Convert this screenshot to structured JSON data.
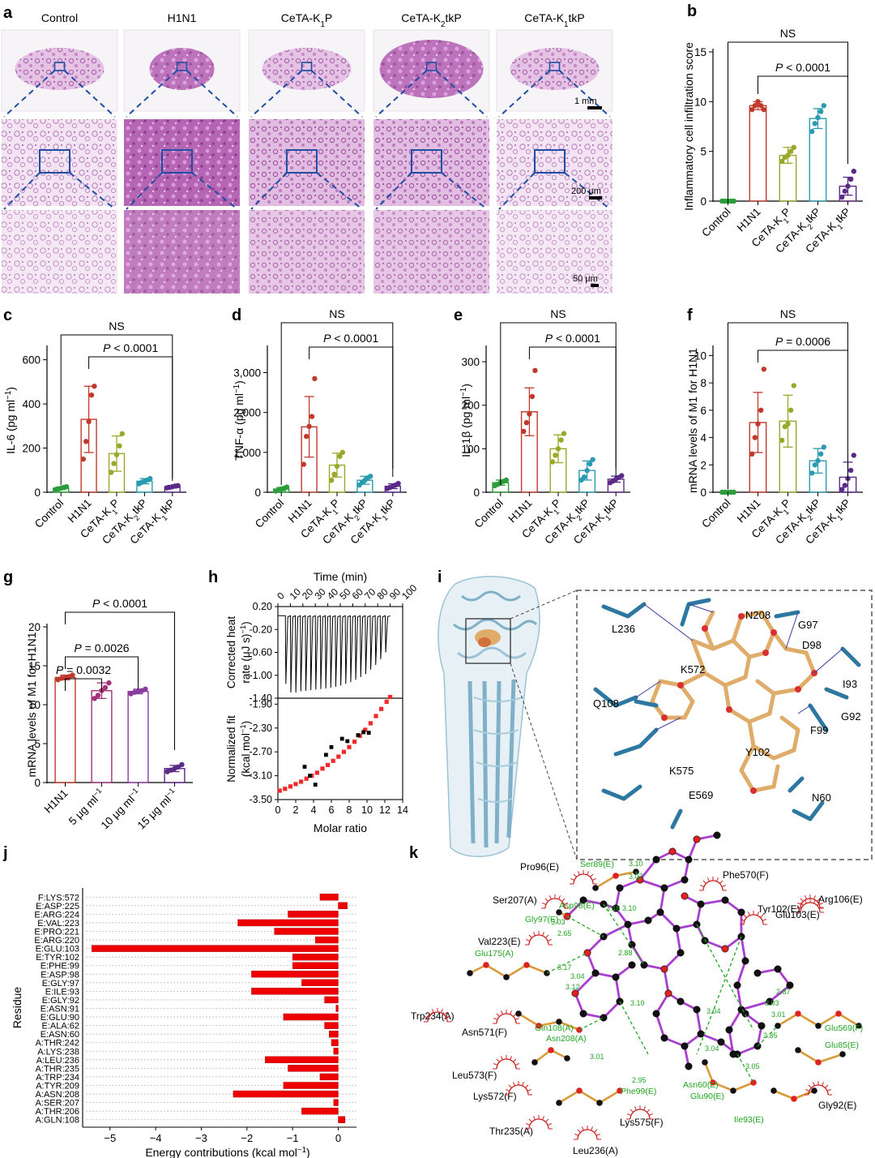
{
  "colors": {
    "control": "#2a9d3a",
    "h1n1": "#c0392b",
    "k1p": "#9aa82a",
    "k2tkp": "#2a9bb0",
    "k1tkp": "#5b2a86",
    "tissue_dark": "#a44ea8",
    "tissue_light": "#dbb7e0",
    "box_blue": "#1f4ea3",
    "energy_red": "#ee0000",
    "itc_red": "#ee2a2a",
    "protein_blue": "#9cc3d5",
    "ligand_tan": "#e0ac6a",
    "sidechain_blue": "#2d78a0",
    "lig_purple": "#a83fcf",
    "hbond_green": "#22a422"
  },
  "panel_a": {
    "label": "a",
    "columns": [
      "Control",
      "H1N1",
      "CeTA-K1P",
      "CeTA-K2tkP",
      "CeTA-K1tkP"
    ],
    "scalebars": [
      "1 mm",
      "200 μm",
      "50 μm"
    ],
    "row_density": [
      0.25,
      0.85,
      0.4,
      0.6,
      0.3
    ]
  },
  "chart_data": [
    {
      "panel": "b",
      "type": "bar",
      "categories": [
        "Control",
        "H1N1",
        "CeTA-K1P",
        "CeTA-K2tkP",
        "CeTA-K1tkP"
      ],
      "values": [
        0,
        9.6,
        4.6,
        8.3,
        1.5
      ],
      "errors": [
        0,
        0.4,
        0.8,
        1.0,
        0.9
      ],
      "points": [
        [
          0,
          0,
          0,
          0,
          0
        ],
        [
          9.2,
          9.6,
          10,
          9.6,
          9.2
        ],
        [
          4,
          4.4,
          4.6,
          5,
          5.4
        ],
        [
          7,
          7.8,
          8.4,
          9,
          9.6
        ],
        [
          0.4,
          1,
          1.5,
          2.2,
          3
        ]
      ],
      "ylabel": "Inflammatory cell infiltration score",
      "ylim": [
        0,
        15
      ],
      "yticks": [
        0,
        5,
        10,
        15
      ],
      "annotations": [
        "NS",
        "P < 0.0001"
      ]
    },
    {
      "panel": "c",
      "type": "bar",
      "categories": [
        "Control",
        "H1N1",
        "CeTA-K1P",
        "CeTA-K2tkP",
        "CeTA-K1tkP"
      ],
      "values": [
        18,
        330,
        175,
        50,
        25
      ],
      "errors": [
        6,
        150,
        80,
        12,
        6
      ],
      "points": [
        [
          12,
          15,
          18,
          22,
          25
        ],
        [
          150,
          230,
          320,
          440,
          480
        ],
        [
          90,
          130,
          170,
          210,
          265
        ],
        [
          38,
          45,
          50,
          55,
          62
        ],
        [
          20,
          22,
          25,
          28,
          30
        ]
      ],
      "ylabel": "IL-6 (pg ml−1)",
      "ylim": [
        0,
        650
      ],
      "yticks": [
        0,
        200,
        400,
        600
      ],
      "annotations": [
        "NS",
        "P < 0.0001"
      ]
    },
    {
      "panel": "d",
      "type": "bar",
      "categories": [
        "Control",
        "H1N1",
        "CeTA-K1P",
        "CeTA-K2tkP",
        "CeTA-K1tkP"
      ],
      "values": [
        80,
        1640,
        680,
        300,
        150
      ],
      "errors": [
        40,
        760,
        300,
        100,
        60
      ],
      "points": [
        [
          30,
          60,
          80,
          100,
          130
        ],
        [
          700,
          1400,
          1650,
          1900,
          2850
        ],
        [
          300,
          450,
          650,
          900,
          1000
        ],
        [
          180,
          250,
          300,
          360,
          400
        ],
        [
          90,
          120,
          150,
          180,
          220
        ]
      ],
      "ylabel": "TNF-α (pg ml−1)",
      "ylim": [
        0,
        3600
      ],
      "yticks": [
        0,
        1000,
        2000,
        3000
      ],
      "yticklabels": [
        "0",
        "1,000",
        "2,000",
        "3,000"
      ],
      "annotations": [
        "NS",
        "P < 0.0001"
      ]
    },
    {
      "panel": "e",
      "type": "bar",
      "categories": [
        "Control",
        "H1N1",
        "CeTA-K1P",
        "CeTA-K2tkP",
        "CeTA-K1tkP"
      ],
      "values": [
        22,
        185,
        100,
        50,
        30
      ],
      "errors": [
        6,
        55,
        32,
        22,
        7
      ],
      "points": [
        [
          15,
          18,
          22,
          25,
          28
        ],
        [
          140,
          160,
          180,
          220,
          280
        ],
        [
          70,
          85,
          100,
          120,
          135
        ],
        [
          28,
          35,
          50,
          65,
          75
        ],
        [
          22,
          26,
          30,
          34,
          38
        ]
      ],
      "ylabel": "IL-1β (pg ml−1)",
      "ylim": [
        0,
        330
      ],
      "yticks": [
        0,
        100,
        200,
        300
      ],
      "annotations": [
        "NS",
        "P < 0.0001"
      ]
    },
    {
      "panel": "f",
      "type": "bar",
      "categories": [
        "Control",
        "H1N1",
        "CeTA-K1P",
        "CeTA-K2tkP",
        "CeTA-K1tkP"
      ],
      "values": [
        0,
        5.1,
        5.2,
        2.3,
        1.1
      ],
      "errors": [
        0,
        2.2,
        1.9,
        0.9,
        1.1
      ],
      "points": [
        [
          0,
          0,
          0,
          0,
          0
        ],
        [
          2.8,
          4,
          5,
          6,
          9
        ],
        [
          3.8,
          4.8,
          5,
          6,
          7.8
        ],
        [
          1.4,
          2,
          2.3,
          2.8,
          3.3
        ],
        [
          0.2,
          0.5,
          1,
          1.6,
          2.7
        ]
      ],
      "ylabel": "mRNA levels of M1 for H1N1",
      "ylim": [
        0,
        10.5
      ],
      "yticks": [
        0,
        2,
        4,
        6,
        8,
        10
      ],
      "annotations": [
        "NS",
        "P = 0.0006"
      ]
    },
    {
      "panel": "g",
      "type": "bar",
      "categories": [
        "H1N1",
        "5 μg ml−1",
        "10 μg ml−1",
        "15 μg ml−1"
      ],
      "values": [
        13.5,
        11.8,
        11.7,
        1.8
      ],
      "errors": [
        0.3,
        1.0,
        0.3,
        0.4
      ],
      "points": [
        [
          13.2,
          13.4,
          13.5,
          13.6,
          13.8
        ],
        [
          10.8,
          11.2,
          11.8,
          12.2,
          12.8
        ],
        [
          11.4,
          11.6,
          11.7,
          11.8,
          12
        ],
        [
          1.4,
          1.6,
          1.8,
          2,
          2.3
        ]
      ],
      "ylabel": "mRNA levels of M1 for H1N1",
      "ylim": [
        0,
        20
      ],
      "yticks": [
        0,
        5,
        10,
        15,
        20
      ],
      "annotations": [
        "P = 0.0032",
        "P = 0.0026",
        "P < 0.0001"
      ]
    },
    {
      "panel": "h",
      "type": "line",
      "title": "Time (min)",
      "top_xticks": [
        0,
        10,
        20,
        30,
        40,
        50,
        60,
        70,
        80,
        90,
        100
      ],
      "top_ylabel": "Corrected heat rate (μJ s−1)",
      "top_ylim": [
        -1.4,
        0.2
      ],
      "top_yticks": [
        0.2,
        -0.2,
        -0.6,
        -1.0,
        -1.4
      ],
      "top_yticklabels": [
        "0.20",
        "-0.20",
        "-0.60",
        "-1.00",
        "-1.40"
      ],
      "injection_times": [
        6,
        10,
        14,
        18,
        22,
        26,
        30,
        34,
        38,
        42,
        46,
        50,
        54,
        58,
        62,
        66,
        70,
        74,
        78,
        82,
        86
      ],
      "peak_heats": [
        -1.15,
        -1.3,
        -1.3,
        -1.28,
        -1.27,
        -1.26,
        -1.25,
        -1.24,
        -1.23,
        -1.22,
        -1.2,
        -1.18,
        -1.15,
        -1.12,
        -1.08,
        -1.03,
        -0.98,
        -0.9,
        -0.82,
        -0.72,
        -0.6
      ],
      "xlabel": "Molar ratio",
      "bottom_ylabel": "Normalized fit (kcal mol−1)",
      "bottom_ylim": [
        -3.5,
        -1.8
      ],
      "bottom_yticks": [
        -1.9,
        -2.3,
        -2.7,
        -3.1,
        -3.5
      ],
      "bottom_yticklabels": [
        "-1.90",
        "-2.30",
        "-2.70",
        "-3.10",
        "-3.50"
      ],
      "xlim": [
        0,
        14
      ],
      "xticks": [
        0,
        2,
        4,
        6,
        8,
        10,
        12,
        14
      ],
      "fit_x": [
        0.2,
        0.8,
        1.4,
        2.0,
        2.6,
        3.2,
        3.8,
        4.4,
        5.0,
        5.6,
        6.2,
        6.8,
        7.4,
        8.0,
        8.6,
        9.2,
        9.8,
        10.4,
        11.0,
        11.6,
        12.2,
        12.6
      ],
      "fit_y": [
        -3.35,
        -3.32,
        -3.28,
        -3.24,
        -3.2,
        -3.15,
        -3.1,
        -3.05,
        -2.98,
        -2.92,
        -2.85,
        -2.78,
        -2.7,
        -2.62,
        -2.53,
        -2.43,
        -2.33,
        -2.22,
        -2.1,
        -1.98,
        -1.86,
        -1.78
      ],
      "data_x": [
        3.0,
        3.6,
        4.2,
        5.4,
        6.0,
        7.2,
        7.8,
        9.0,
        9.6,
        10.2
      ],
      "data_y": [
        -2.95,
        -3.1,
        -3.25,
        -2.75,
        -2.62,
        -2.48,
        -2.52,
        -2.42,
        -2.37,
        -2.38
      ]
    },
    {
      "panel": "j",
      "type": "bar",
      "orientation": "horizontal",
      "categories": [
        "F:LYS:572",
        "E:ASP:225",
        "E:ARG:224",
        "E:VAL:223",
        "E:PRO:221",
        "E:ARG:220",
        "E:GLU:103",
        "E:TYR:102",
        "E:PHE:99",
        "E:ASP:98",
        "E:GLY:97",
        "E:ILE:93",
        "E:GLY:92",
        "E:ASN:91",
        "E:GLU:90",
        "E:ALA:62",
        "E:ASN:60",
        "A:THR:242",
        "A:LYS:238",
        "A:LEU:236",
        "A:THR:235",
        "A:TRP:234",
        "A:TYR:209",
        "A:ASN:208",
        "A:SER:207",
        "A:THR:206",
        "A:GLN:108"
      ],
      "values": [
        -0.4,
        0.2,
        -1.1,
        -2.2,
        -1.4,
        -0.5,
        -5.4,
        -1.0,
        -1.0,
        -1.9,
        -0.8,
        -1.9,
        -0.3,
        -0.05,
        -1.2,
        -0.3,
        -0.2,
        -0.15,
        -0.1,
        -1.6,
        -1.1,
        -0.4,
        -1.2,
        -2.3,
        -0.1,
        -0.8,
        0.15
      ],
      "xlabel": "Energy contributions (kcal mol−1)",
      "ylabel": "Residue",
      "xlim": [
        -5.6,
        0.4
      ],
      "xticks": [
        -5,
        -4,
        -3,
        -2,
        -1,
        0
      ]
    }
  ],
  "labels": {
    "b": "b",
    "c": "c",
    "d": "d",
    "e": "e",
    "f": "f",
    "g": "g",
    "h": "h",
    "i": "i",
    "j": "j",
    "k": "k"
  },
  "panel_i": {
    "residues": [
      "N208",
      "G97",
      "L236",
      "D98",
      "I93",
      "K572",
      "Q108",
      "G92",
      "F99",
      "Y102",
      "K575",
      "E569",
      "N60"
    ]
  },
  "panel_k": {
    "hydrophobic": [
      "Pro96(E)",
      "Phe570(F)",
      "Ser207(A)",
      "Tyr102(E)",
      "Val223(E)",
      "Arg106(E)",
      "Glu103(E)",
      "Trp234(A)",
      "Asn571(F)",
      "Leu573(F)",
      "Lys572(F)",
      "Gly92(E)",
      "Thr235(A)",
      "Lys575(F)",
      "Leu236(A)"
    ],
    "hbond_residues": [
      "Ser89(E)",
      "Asp98(E)",
      "Gly97(E)",
      "Glu175(A)",
      "Gln108(A)",
      "Asn208(A)",
      "Phe99(E)",
      "Asn60(E)",
      "Glu90(E)",
      "Ile93(E)",
      "Glu569(F)",
      "Glu85(E)"
    ],
    "distances": [
      "3.10",
      "3.07",
      "3.18",
      "3.10",
      "3.03",
      "2.65",
      "3.17",
      "3.04",
      "3.12",
      "2.88",
      "3.10",
      "3.01",
      "2.95",
      "3.04",
      "3.05",
      "3.04",
      "2.87",
      "3.03",
      "3.01",
      "2.85"
    ]
  }
}
